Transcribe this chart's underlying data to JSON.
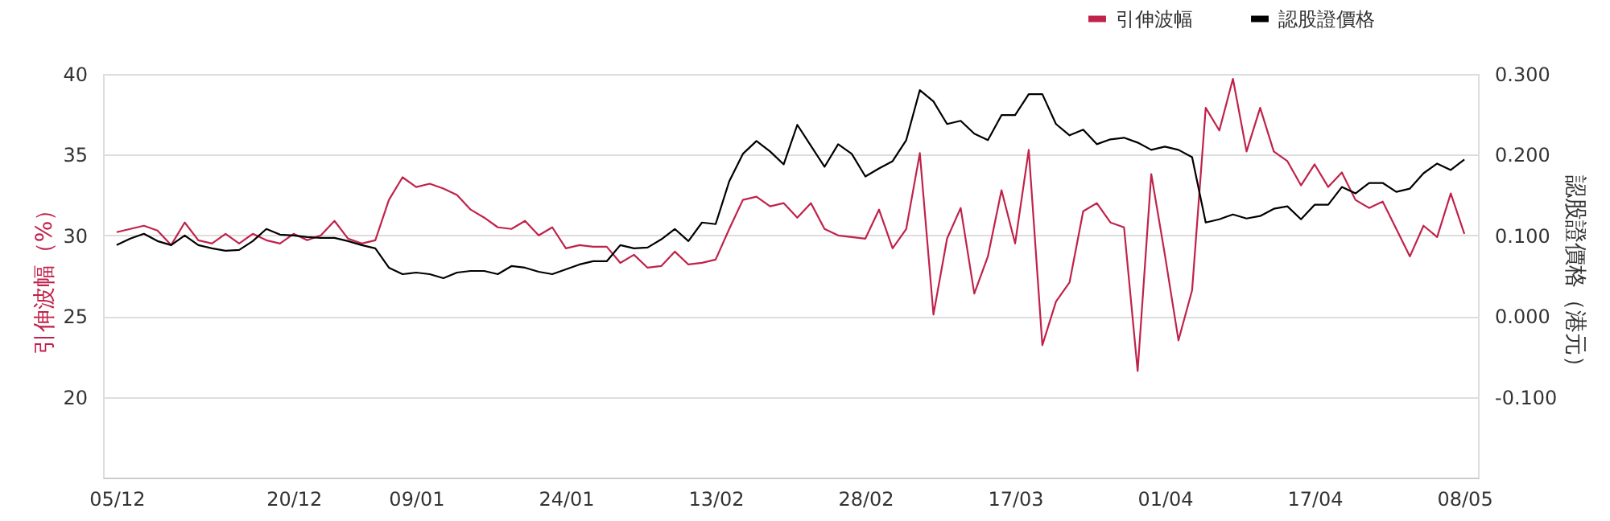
{
  "chart_data": {
    "type": "line",
    "ylabel": "引伸波幅（%）",
    "y2label": "認股證價格（港元）",
    "categories": [
      "05/12",
      null,
      null,
      null,
      null,
      null,
      null,
      null,
      null,
      null,
      null,
      null,
      null,
      "20/12",
      null,
      null,
      null,
      null,
      null,
      null,
      null,
      null,
      "09/01",
      null,
      null,
      null,
      null,
      null,
      null,
      null,
      null,
      null,
      null,
      "24/01",
      null,
      null,
      null,
      null,
      null,
      null,
      null,
      null,
      null,
      null,
      "13/02",
      null,
      null,
      null,
      null,
      null,
      null,
      null,
      null,
      null,
      null,
      "28/02",
      null,
      null,
      null,
      null,
      null,
      null,
      null,
      null,
      null,
      null,
      "17/03",
      null,
      null,
      null,
      null,
      null,
      null,
      null,
      null,
      null,
      null,
      "01/04",
      null,
      null,
      null,
      null,
      null,
      null,
      null,
      null,
      null,
      null,
      "17/04",
      null,
      null,
      null,
      null,
      null,
      null,
      null,
      null,
      null,
      null,
      "08/05"
    ],
    "series": [
      {
        "name": "引伸波幅",
        "color": "#c0224a",
        "values": [
          30.2,
          30.4,
          30.6,
          30.3,
          29.4,
          30.8,
          29.7,
          29.5,
          30.1,
          29.5,
          30.1,
          29.7,
          29.5,
          30.1,
          29.7,
          30.0,
          30.9,
          29.8,
          29.5,
          29.7,
          32.2,
          33.6,
          33.0,
          33.2,
          32.9,
          32.5,
          31.6,
          31.1,
          30.5,
          30.4,
          30.9,
          30.0,
          30.5,
          29.2,
          29.4,
          29.3,
          29.3,
          28.3,
          28.8,
          28.0,
          28.1,
          29.0,
          28.2,
          28.3,
          28.5,
          30.4,
          32.2,
          32.4,
          31.8,
          32.0,
          31.1,
          32.0,
          30.4,
          30.0,
          29.9,
          29.8,
          31.6,
          29.2,
          30.4,
          35.1,
          25.1,
          29.8,
          31.7,
          26.4,
          28.7,
          32.8,
          29.5,
          35.3,
          23.2,
          25.9,
          27.1,
          31.5,
          32.0,
          30.8,
          30.5,
          21.6,
          33.8,
          28.8,
          23.5,
          26.6,
          37.9,
          36.5,
          39.7,
          35.2,
          37.9,
          35.2,
          34.6,
          33.1,
          34.4,
          33.0,
          33.9,
          32.2,
          31.7,
          32.1,
          30.4,
          28.7,
          30.6,
          29.9,
          32.6,
          30.1
        ]
      },
      {
        "name": "認股證價格",
        "color": "#000000",
        "axis": "y2",
        "values": [
          0.088,
          0.096,
          0.102,
          0.093,
          0.088,
          0.1,
          0.088,
          0.084,
          0.081,
          0.082,
          0.093,
          0.108,
          0.101,
          0.1,
          0.098,
          0.097,
          0.097,
          0.093,
          0.088,
          0.084,
          0.06,
          0.052,
          0.054,
          0.052,
          0.047,
          0.054,
          0.056,
          0.056,
          0.052,
          0.062,
          0.06,
          0.055,
          0.052,
          0.058,
          0.064,
          0.068,
          0.068,
          0.088,
          0.084,
          0.085,
          0.095,
          0.108,
          0.093,
          0.116,
          0.114,
          0.167,
          0.201,
          0.217,
          0.204,
          0.188,
          0.237,
          0.211,
          0.185,
          0.213,
          0.201,
          0.173,
          0.183,
          0.192,
          0.218,
          0.28,
          0.266,
          0.238,
          0.242,
          0.226,
          0.218,
          0.249,
          0.249,
          0.275,
          0.275,
          0.238,
          0.224,
          0.231,
          0.213,
          0.219,
          0.221,
          0.215,
          0.206,
          0.21,
          0.206,
          0.197,
          0.116,
          0.12,
          0.126,
          0.121,
          0.124,
          0.133,
          0.136,
          0.12,
          0.138,
          0.138,
          0.16,
          0.152,
          0.165,
          0.165,
          0.154,
          0.158,
          0.177,
          0.189,
          0.181,
          0.194
        ]
      }
    ],
    "ylim": [
      15,
      40
    ],
    "yticks": [
      20,
      25,
      30,
      35,
      40
    ],
    "y2lim": [
      -0.2,
      0.3
    ],
    "y2ticks": [
      {
        "value": -0.1,
        "label": "-0.100"
      },
      {
        "value": 0,
        "label": "0.000"
      },
      {
        "value": 0.1,
        "label": "0.100"
      },
      {
        "value": 0.2,
        "label": "0.200"
      },
      {
        "value": 0.3,
        "label": "0.300"
      }
    ],
    "grid": "y",
    "legend": "top right",
    "line_style": "solid",
    "marker": "none"
  }
}
